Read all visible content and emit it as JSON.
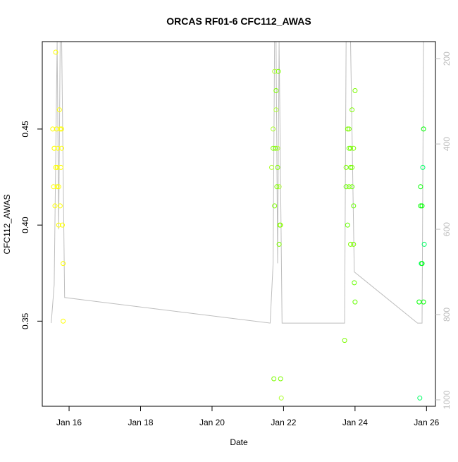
{
  "chart_data": {
    "type": "scatter",
    "title": "ORCAS RF01-6 CFC112_AWAS",
    "xlabel": "Date",
    "ylabel": "CFC112_AWAS",
    "x_type": "date",
    "xlim": [
      "2016-01-15T06:00:00",
      "2016-01-26T06:00:00"
    ],
    "ylim": [
      0.3057,
      0.4955
    ],
    "right_axis": {
      "ylim": [
        1015,
        160
      ],
      "tick_values": [
        200,
        400,
        600,
        800,
        1000
      ],
      "tick_labels": [
        "200",
        "400",
        "600",
        "800",
        "1000"
      ],
      "color": "#bebebe"
    },
    "x_ticks": [
      "2016-01-16",
      "2016-01-18",
      "2016-01-20",
      "2016-01-22",
      "2016-01-24",
      "2016-01-26"
    ],
    "x_tick_labels": [
      "Jan 16",
      "Jan 18",
      "Jan 20",
      "Jan 22",
      "Jan 24",
      "Jan 26"
    ],
    "y_ticks": [
      0.35,
      0.4,
      0.45
    ],
    "y_tick_labels": [
      "0.35",
      "0.40",
      "0.45"
    ],
    "grid": false,
    "legend": "none",
    "series": [
      {
        "color": "#ffff00",
        "x": [
          "2016-01-15T13:00:00",
          "2016-01-15T13:30:00",
          "2016-01-15T14:00:00",
          "2016-01-15T14:30:00",
          "2016-01-15T15:00:00",
          "2016-01-15T15:30:00",
          "2016-01-15T16:00:00",
          "2016-01-15T16:30:00",
          "2016-01-15T17:00:00",
          "2016-01-15T17:30:00",
          "2016-01-15T18:00:00",
          "2016-01-15T18:30:00",
          "2016-01-15T19:00:00",
          "2016-01-15T19:30:00",
          "2016-01-15T20:00:00"
        ],
        "y": [
          0.45,
          0.42,
          0.44,
          0.41,
          0.43,
          0.45,
          0.42,
          0.44,
          0.4,
          0.46,
          0.41,
          0.43,
          0.45,
          0.4,
          0.38
        ]
      },
      {
        "color": "#ffff00",
        "x": [
          "2016-01-15T14:00:00",
          "2016-01-15T15:00:00",
          "2016-01-15T16:00:00",
          "2016-01-15T17:00:00",
          "2016-01-15T18:00:00",
          "2016-01-15T19:00:00",
          "2016-01-15T20:00:00"
        ],
        "y": [
          0.44,
          0.49,
          0.43,
          0.42,
          0.45,
          0.44,
          0.35
        ]
      },
      {
        "color": "#adff2f",
        "x": [
          "2016-01-21T16:00:00",
          "2016-01-21T17:00:00",
          "2016-01-21T18:00:00",
          "2016-01-21T19:00:00",
          "2016-01-21T20:00:00",
          "2016-01-21T21:00:00",
          "2016-01-21T22:00:00",
          "2016-01-21T22:30:00"
        ],
        "y": [
          0.43,
          0.45,
          0.48,
          0.46,
          0.44,
          0.42,
          0.4,
          0.31
        ]
      },
      {
        "color": "#7cfc00",
        "x": [
          "2016-01-21T17:00:00",
          "2016-01-21T18:00:00",
          "2016-01-21T19:00:00",
          "2016-01-21T20:00:00",
          "2016-01-21T21:00:00",
          "2016-01-21T22:00:00"
        ],
        "y": [
          0.44,
          0.41,
          0.47,
          0.43,
          0.39,
          0.32
        ]
      },
      {
        "color": "#7cfc00",
        "x": [
          "2016-01-21T17:30:00",
          "2016-01-21T18:30:00",
          "2016-01-21T19:30:00",
          "2016-01-21T20:30:00",
          "2016-01-21T21:30:00"
        ],
        "y": [
          0.32,
          0.44,
          0.42,
          0.48,
          0.4
        ]
      },
      {
        "color": "#7cfc00",
        "x": [
          "2016-01-23T17:00:00",
          "2016-01-23T18:00:00",
          "2016-01-23T19:00:00",
          "2016-01-23T20:00:00",
          "2016-01-23T21:00:00",
          "2016-01-23T22:00:00",
          "2016-01-23T23:00:00"
        ],
        "y": [
          0.34,
          0.43,
          0.45,
          0.42,
          0.44,
          0.46,
          0.39
        ]
      },
      {
        "color": "#66ff00",
        "x": [
          "2016-01-23T18:00:00",
          "2016-01-23T19:00:00",
          "2016-01-23T20:00:00",
          "2016-01-23T21:00:00",
          "2016-01-23T22:00:00",
          "2016-01-23T23:00:00",
          "2016-01-23T23:30:00",
          "2016-01-24T00:00:00"
        ],
        "y": [
          0.42,
          0.4,
          0.44,
          0.43,
          0.42,
          0.41,
          0.37,
          0.36
        ]
      },
      {
        "color": "#7cfc00",
        "x": [
          "2016-01-23T20:00:00",
          "2016-01-23T21:00:00",
          "2016-01-23T22:00:00",
          "2016-01-23T23:00:00",
          "2016-01-24T00:00:00"
        ],
        "y": [
          0.45,
          0.39,
          0.43,
          0.44,
          0.47
        ]
      },
      {
        "color": "#00ff00",
        "x": [
          "2016-01-25T19:00:00",
          "2016-01-25T20:00:00",
          "2016-01-25T21:00:00",
          "2016-01-25T22:00:00"
        ],
        "y": [
          0.36,
          0.42,
          0.41,
          0.45
        ]
      },
      {
        "color": "#00ff66",
        "x": [
          "2016-01-25T19:30:00",
          "2016-01-25T20:30:00",
          "2016-01-25T21:30:00",
          "2016-01-25T22:30:00"
        ],
        "y": [
          0.31,
          0.38,
          0.43,
          0.39
        ]
      },
      {
        "color": "#00ff00",
        "x": [
          "2016-01-25T20:00:00",
          "2016-01-25T21:00:00",
          "2016-01-25T22:00:00"
        ],
        "y": [
          0.41,
          0.38,
          0.36
        ]
      }
    ],
    "line_series": {
      "axis": "right",
      "color": "#bebebe",
      "x": [
        "2016-01-15T12:00:00",
        "2016-01-15T14:00:00",
        "2016-01-15T16:00:00",
        "2016-01-15T17:00:00",
        "2016-01-15T18:00:00",
        "2016-01-15T19:00:00",
        "2016-01-15T21:00:00",
        "2016-01-21T15:00:00",
        "2016-01-21T17:00:00",
        "2016-01-21T18:00:00",
        "2016-01-21T19:00:00",
        "2016-01-21T20:00:00",
        "2016-01-21T21:00:00",
        "2016-01-21T23:00:00",
        "2016-01-23T15:00:00",
        "2016-01-23T17:00:00",
        "2016-01-23T18:00:00",
        "2016-01-23T19:00:00",
        "2016-01-23T20:00:00",
        "2016-01-23T21:00:00",
        "2016-01-23T23:30:00",
        "2016-01-25T18:00:00",
        "2016-01-25T21:00:00",
        "2016-01-25T22:00:00"
      ],
      "y": [
        820,
        730,
        160,
        600,
        160,
        160,
        760,
        820,
        680,
        160,
        160,
        680,
        160,
        820,
        820,
        820,
        160,
        160,
        160,
        160,
        700,
        820,
        820,
        160
      ]
    }
  }
}
